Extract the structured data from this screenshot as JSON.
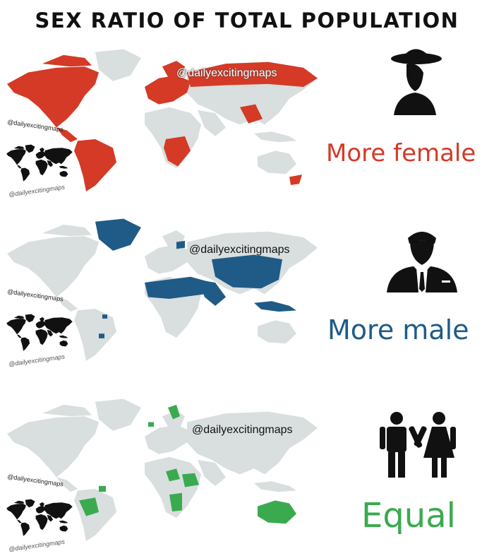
{
  "title": "SEX RATIO OF TOTAL POPULATION",
  "handle": "@dailyexcitingmaps",
  "colors": {
    "land": "#d9dedf",
    "female": "#d43a26",
    "male": "#1f5b86",
    "equal": "#3aaa4f",
    "ink": "#111111"
  },
  "panels": [
    {
      "label": "More female",
      "icon": "woman-with-hat-icon"
    },
    {
      "label": "More male",
      "icon": "man-in-suit-icon"
    },
    {
      "label": "Equal",
      "icon": "man-and-woman-icon"
    }
  ]
}
